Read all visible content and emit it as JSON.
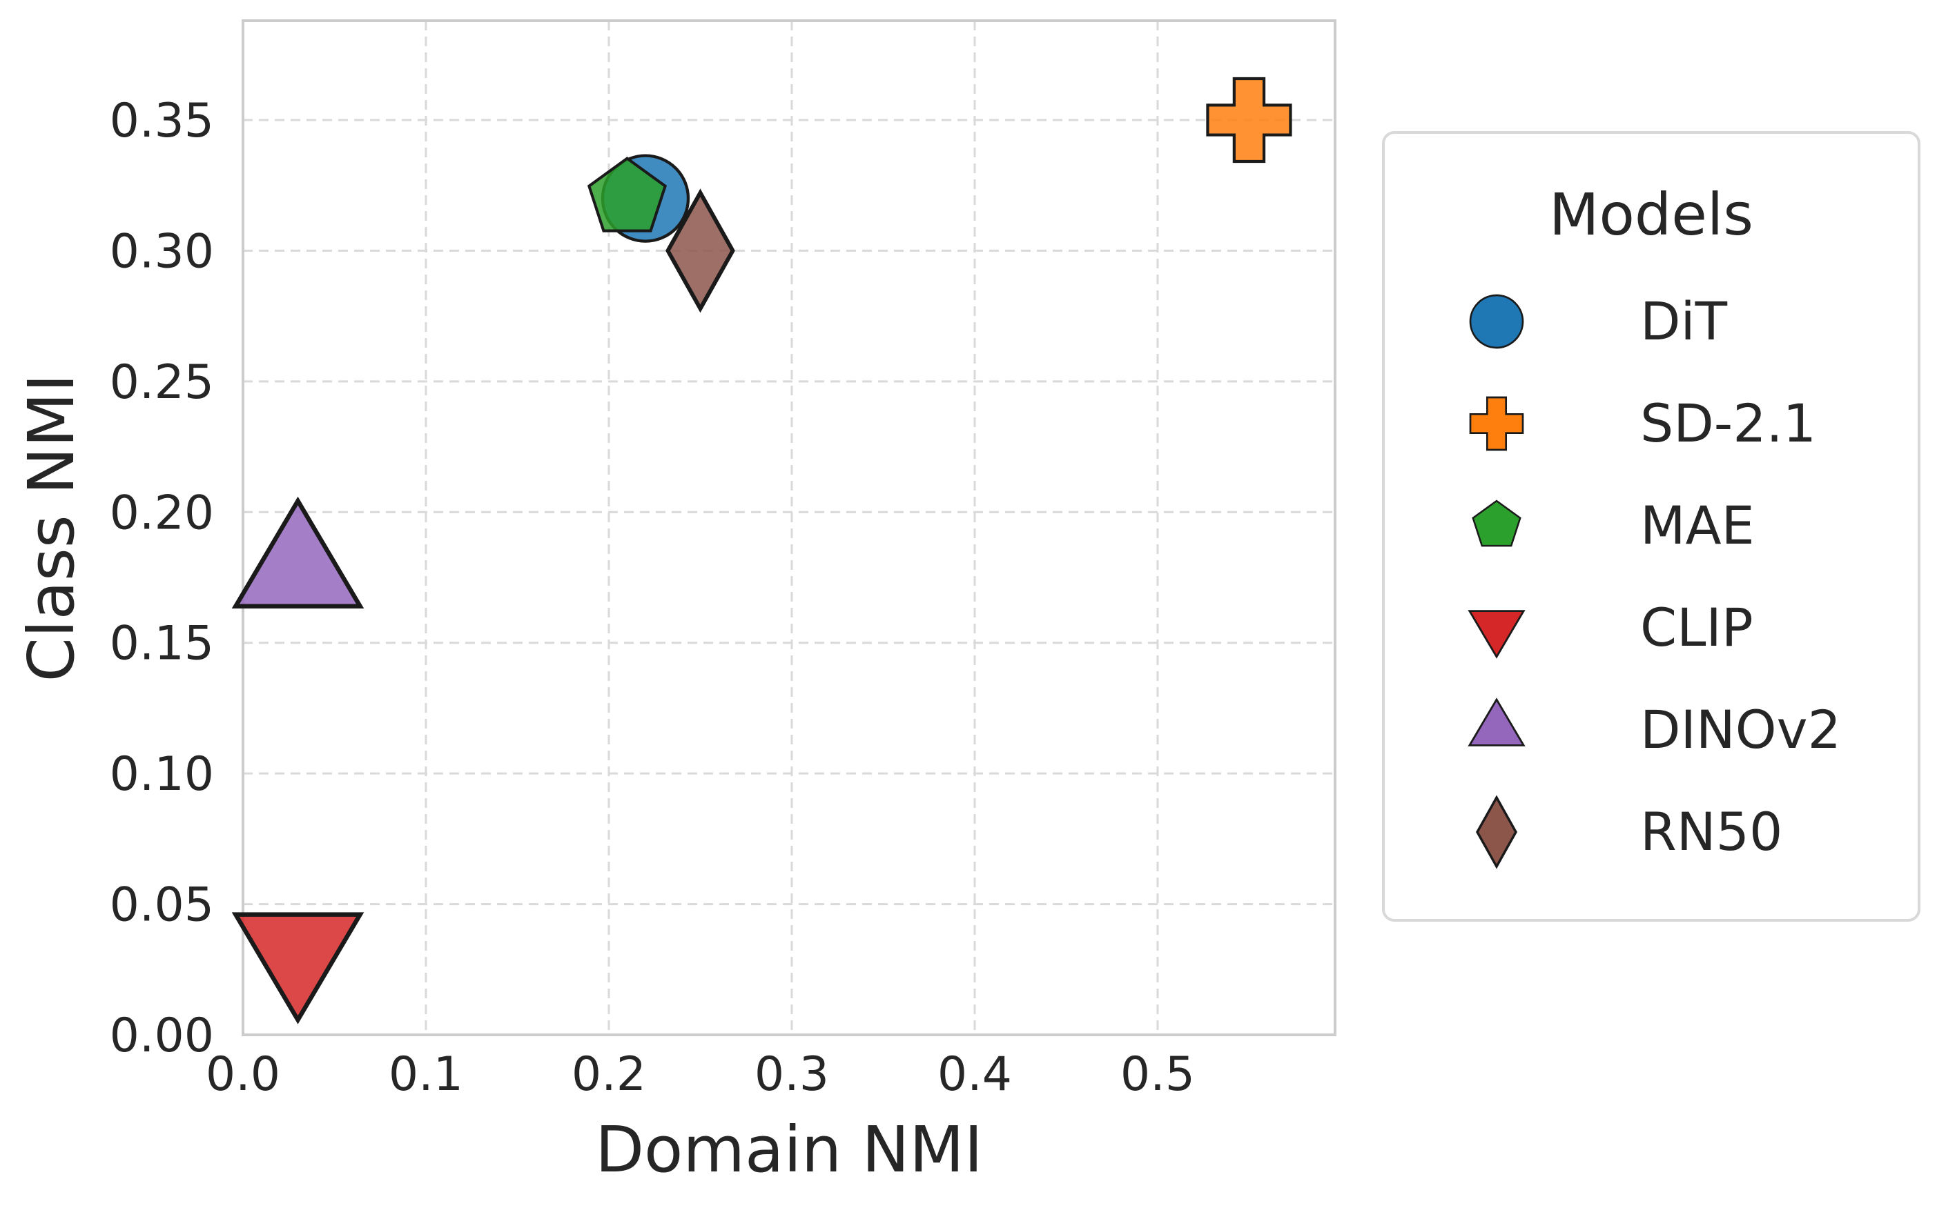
{
  "chart_data": {
    "type": "scatter",
    "xlabel": "Domain NMI",
    "ylabel": "Class NMI",
    "xlim": [
      0.0,
      0.597
    ],
    "ylim": [
      0.0,
      0.388
    ],
    "xticks": [
      "0.0",
      "0.1",
      "0.2",
      "0.3",
      "0.4",
      "0.5"
    ],
    "yticks": [
      "0.00",
      "0.05",
      "0.10",
      "0.15",
      "0.20",
      "0.25",
      "0.30",
      "0.35"
    ],
    "grid": true,
    "legend": {
      "title": "Models",
      "placement": "right-outside"
    },
    "series": [
      {
        "name": "DiT",
        "marker": "circle",
        "color": "#1f77b4",
        "x": 0.22,
        "y": 0.32
      },
      {
        "name": "SD-2.1",
        "marker": "plus",
        "color": "#ff7f0e",
        "x": 0.55,
        "y": 0.35
      },
      {
        "name": "MAE",
        "marker": "pentagon",
        "color": "#2ca02c",
        "x": 0.21,
        "y": 0.32
      },
      {
        "name": "CLIP",
        "marker": "triangle-down",
        "color": "#d62728",
        "x": 0.03,
        "y": 0.03
      },
      {
        "name": "DINOv2",
        "marker": "triangle-up",
        "color": "#9467bd",
        "x": 0.03,
        "y": 0.18
      },
      {
        "name": "RN50",
        "marker": "diamond",
        "color": "#8c564b",
        "x": 0.25,
        "y": 0.3
      }
    ]
  }
}
